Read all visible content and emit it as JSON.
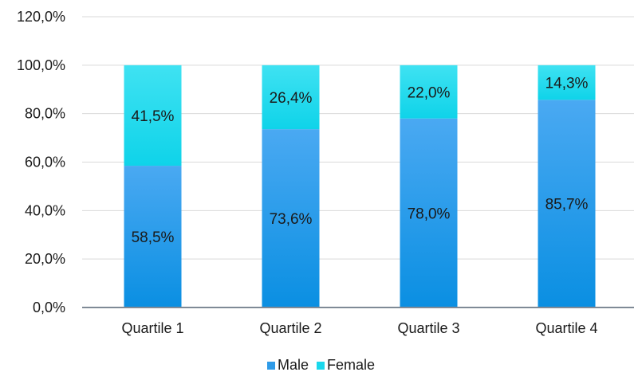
{
  "chart_data": {
    "type": "bar",
    "stacked": true,
    "categories": [
      "Quartile 1",
      "Quartile 2",
      "Quartile 3",
      "Quartile 4"
    ],
    "series": [
      {
        "name": "Male",
        "values": [
          58.5,
          73.6,
          78.0,
          85.7
        ],
        "labels": [
          "58,5%",
          "73,6%",
          "78,0%",
          "85,7%"
        ],
        "color": "#2f9be8"
      },
      {
        "name": "Female",
        "values": [
          41.5,
          26.4,
          22.0,
          14.3
        ],
        "labels": [
          "41,5%",
          "26,4%",
          "22,0%",
          "14,3%"
        ],
        "color": "#1ad8ec"
      }
    ],
    "ylim": [
      0,
      120
    ],
    "yticks": [
      0,
      20,
      40,
      60,
      80,
      100,
      120
    ],
    "ytick_labels": [
      "0,0%",
      "20,0%",
      "40,0%",
      "60,0%",
      "80,0%",
      "100,0%",
      "120,0%"
    ],
    "grid": true,
    "legend_position": "bottom"
  }
}
